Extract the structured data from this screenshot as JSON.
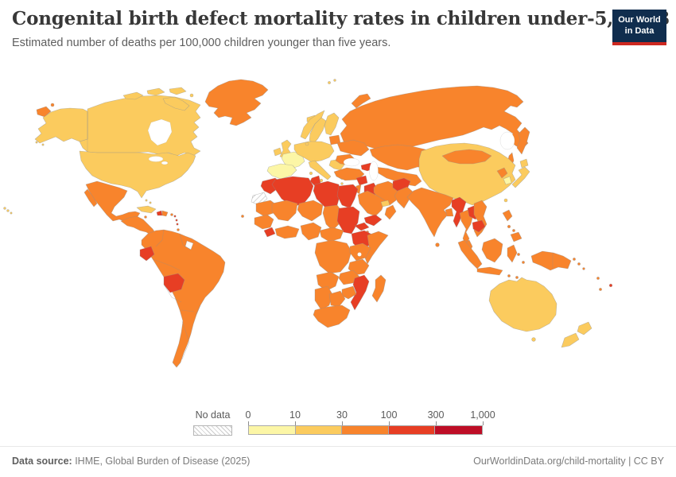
{
  "header": {
    "title": "Congenital birth defect mortality rates in children under-5, 2023",
    "subtitle": "Estimated number of deaths per 100,000 children younger than five years."
  },
  "logo": {
    "line1": "Our World",
    "line2": "in Data",
    "bg_color": "#102D4E",
    "accent_color": "#CE2820"
  },
  "legend": {
    "no_data_label": "No data"
  },
  "footer": {
    "source_label": "Data source:",
    "source_text": " IHME, Global Burden of Disease (2025)",
    "link": "OurWorldinData.org/child-mortality | CC BY"
  },
  "chart_data": {
    "type": "choropleth_map",
    "title": "Congenital birth defect mortality rates in children under-5, 2023",
    "unit": "deaths per 100,000 children younger than five years",
    "year": "2023",
    "legend": {
      "tick_labels": [
        "0",
        "10",
        "30",
        "100",
        "300",
        "1,000"
      ],
      "bin_thresholds": [
        0,
        10,
        30,
        100,
        300,
        1000
      ],
      "bin_colors": [
        "#FCF6A6",
        "#FBCB5E",
        "#F8842C",
        "#E73E24",
        "#BE0D26"
      ],
      "no_data_label": "No data",
      "no_data_style": "hatched",
      "border_color": "#8f8f8f"
    },
    "regions": {
      "russia": 2,
      "canada": 1,
      "usa": 1,
      "greenland": 2,
      "iceland": 1,
      "mexico": 2,
      "central_america": 2,
      "cuba": 1,
      "haiti": 3,
      "dominican_republic": 2,
      "jamaica": 2,
      "puerto_rico": 2,
      "bahamas": 1,
      "lesser_antilles": 3,
      "trinidad_and_tobago": 2,
      "cape_verde": 2,
      "south_america": 2,
      "ecuador": 3,
      "bolivia": 3,
      "french_guiana": "blank",
      "ireland": 1,
      "united_kingdom": 1,
      "norway": 1,
      "sweden": 1,
      "finland": 1,
      "denmark": 1,
      "france": 0,
      "spain_portugal": 0,
      "central_europe": 1,
      "italy": 1,
      "balkans": 1,
      "greece": 1,
      "baltics": 2,
      "ukraine_belarus": 2,
      "romania_bulgaria": 2,
      "turkey": 2,
      "caucasus": 3,
      "kazakhstan": 2,
      "central_asia": 2,
      "china": 1,
      "mongolia": 2,
      "north_korea": 2,
      "south_korea": 0,
      "japan": 1,
      "taiwan": 1,
      "india": 2,
      "sri_lanka": 2,
      "bangladesh": 2,
      "pakistan": 2,
      "afghanistan": 3,
      "iran": 2,
      "iraq": 3,
      "syria": 3,
      "jordan_israel": 2,
      "saudi_arabia": 2,
      "yemen": 3,
      "oman": 2,
      "uae_qatar": 1,
      "myanmar": 3,
      "thailand": 2,
      "laos": 3,
      "cambodia": 3,
      "vietnam": 2,
      "malaysia": 2,
      "indonesia": 2,
      "philippines": 2,
      "papua_new_guinea": 2,
      "solomon_islands": 2,
      "vanuatu": 2,
      "fiji": 3,
      "new_caledonia": 2,
      "timor": 2,
      "australia": 1,
      "new_zealand": 1,
      "morocco": 3,
      "western_sahara": "no_data",
      "algeria": 3,
      "tunisia": 3,
      "libya": 3,
      "egypt": 3,
      "mauritania": 2,
      "mali": 2,
      "niger": 2,
      "chad": 2,
      "sudan": 3,
      "eritrea": 3,
      "ethiopia": 3,
      "somalia": 2,
      "djibouti": 2,
      "senegal_guinea": 2,
      "sierra_leone_liberia": 3,
      "gulf_of_guinea": 2,
      "nigeria": 2,
      "cameroon_car": 2,
      "drc_congo": 2,
      "uganda_kenya": 2,
      "tanzania": 2,
      "angola": 2,
      "zambia": 2,
      "zimbabwe": 2,
      "namibia": 2,
      "botswana": 2,
      "south_africa": 2,
      "mozambique": 3,
      "madagascar": 2
    }
  }
}
